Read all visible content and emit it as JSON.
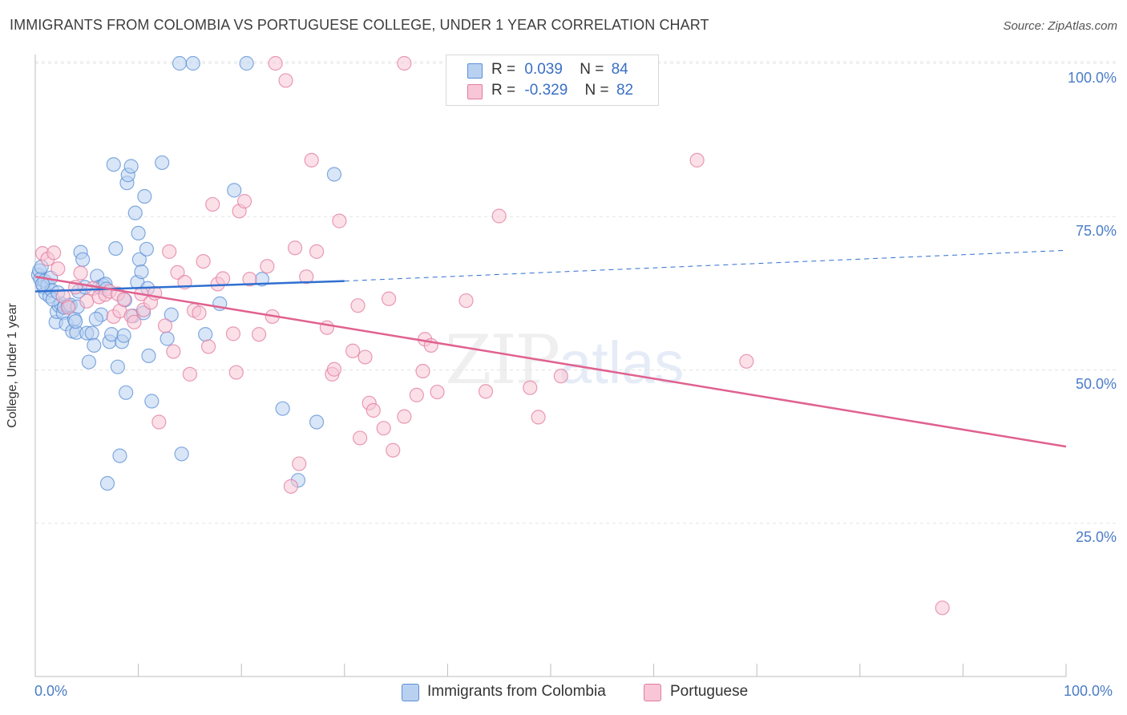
{
  "header": {
    "title": "IMMIGRANTS FROM COLOMBIA VS PORTUGUESE COLLEGE, UNDER 1 YEAR CORRELATION CHART",
    "source": "Source: ZipAtlas.com"
  },
  "watermark": {
    "zip": "ZIP",
    "atlas": "atlas"
  },
  "legend": {
    "rows": [
      {
        "r_label": "R =",
        "r_value": "0.039",
        "n_label": "N =",
        "n_value": "84",
        "color": "#5b8fd6",
        "fill": "#b9d1f1"
      },
      {
        "r_label": "R =",
        "r_value": "-0.329",
        "n_label": "N =",
        "n_value": "82",
        "color": "#e27ba0",
        "fill": "#f8c6d6"
      }
    ]
  },
  "bottom_legend": [
    {
      "label": "Immigrants from Colombia",
      "fill": "#b9d1f1",
      "stroke": "#5b8fd6"
    },
    {
      "label": "Portuguese",
      "fill": "#f8c6d6",
      "stroke": "#e27ba0"
    }
  ],
  "chart_data": {
    "type": "scatter",
    "title": "IMMIGRANTS FROM COLOMBIA VS PORTUGUESE COLLEGE, UNDER 1 YEAR CORRELATION CHART",
    "xlabel": "",
    "ylabel": "College, Under 1 year",
    "xlim": [
      0,
      100
    ],
    "ylim": [
      0,
      104
    ],
    "x_tick_labels": [
      "0.0%",
      "100.0%"
    ],
    "y_ticks": [
      25,
      50,
      75,
      100
    ],
    "y_tick_labels": [
      "25.0%",
      "50.0%",
      "75.0%",
      "100.0%"
    ],
    "grid": true,
    "legend_position": "top-center",
    "series": [
      {
        "name": "Immigrants from Colombia",
        "color": "#5b8fd6",
        "fill": "#b9d1f1",
        "trend": {
          "x0": 0,
          "y0": 62.8,
          "x1": 30,
          "y1": 64.5,
          "dashed_to_x": 100,
          "dashed_to_y": 69.5
        },
        "points": [
          [
            0.3,
            65.5
          ],
          [
            0.4,
            66.2
          ],
          [
            0.5,
            64.8
          ],
          [
            0.6,
            66.8
          ],
          [
            0.8,
            63.5
          ],
          [
            0.9,
            64.5
          ],
          [
            1.0,
            62.5
          ],
          [
            1.2,
            63.8
          ],
          [
            1.4,
            62.0
          ],
          [
            1.5,
            65.0
          ],
          [
            1.6,
            63.0
          ],
          [
            2.0,
            57.8
          ],
          [
            2.1,
            59.5
          ],
          [
            2.3,
            60.5
          ],
          [
            2.5,
            60.8
          ],
          [
            2.7,
            59.3
          ],
          [
            2.8,
            60.2
          ],
          [
            3.0,
            57.5
          ],
          [
            3.2,
            60.5
          ],
          [
            3.4,
            60.6
          ],
          [
            3.6,
            56.3
          ],
          [
            3.8,
            58.3
          ],
          [
            4.0,
            56.1
          ],
          [
            4.2,
            62.8
          ],
          [
            4.4,
            69.2
          ],
          [
            4.6,
            68.0
          ],
          [
            4.8,
            63.5
          ],
          [
            5.0,
            56.0
          ],
          [
            5.2,
            51.3
          ],
          [
            5.5,
            56.0
          ],
          [
            5.7,
            54.0
          ],
          [
            6.0,
            65.3
          ],
          [
            6.2,
            63.5
          ],
          [
            6.4,
            59.0
          ],
          [
            6.6,
            63.8
          ],
          [
            6.8,
            64.0
          ],
          [
            7.0,
            31.5
          ],
          [
            7.2,
            54.6
          ],
          [
            7.4,
            55.8
          ],
          [
            7.6,
            83.5
          ],
          [
            7.8,
            69.8
          ],
          [
            8.0,
            50.5
          ],
          [
            8.2,
            36.0
          ],
          [
            8.4,
            54.6
          ],
          [
            8.6,
            55.6
          ],
          [
            8.7,
            61.4
          ],
          [
            8.8,
            46.3
          ],
          [
            8.9,
            80.5
          ],
          [
            9.0,
            81.8
          ],
          [
            9.3,
            83.2
          ],
          [
            9.5,
            58.8
          ],
          [
            9.7,
            75.6
          ],
          [
            9.9,
            64.3
          ],
          [
            10.0,
            72.3
          ],
          [
            10.1,
            68.0
          ],
          [
            10.3,
            66.0
          ],
          [
            10.5,
            59.3
          ],
          [
            10.6,
            78.3
          ],
          [
            10.8,
            69.7
          ],
          [
            10.9,
            63.3
          ],
          [
            11.0,
            52.3
          ],
          [
            11.3,
            44.9
          ],
          [
            12.3,
            83.8
          ],
          [
            12.8,
            55.1
          ],
          [
            13.2,
            59.0
          ],
          [
            14.0,
            100.0
          ],
          [
            14.2,
            36.3
          ],
          [
            15.3,
            100.0
          ],
          [
            16.5,
            55.8
          ],
          [
            17.9,
            60.8
          ],
          [
            19.3,
            79.3
          ],
          [
            20.5,
            100.0
          ],
          [
            22.0,
            64.8
          ],
          [
            24.0,
            43.7
          ],
          [
            25.5,
            32.0
          ],
          [
            27.3,
            41.5
          ],
          [
            29.0,
            81.9
          ],
          [
            3.9,
            57.9
          ],
          [
            6.9,
            63.2
          ],
          [
            1.7,
            61.5
          ],
          [
            2.2,
            62.6
          ],
          [
            0.7,
            64.0
          ],
          [
            5.9,
            58.3
          ],
          [
            4.1,
            60.3
          ]
        ]
      },
      {
        "name": "Portuguese",
        "color": "#e27ba0",
        "fill": "#f8c6d6",
        "trend": {
          "x0": 0,
          "y0": 65.2,
          "x1": 100,
          "y1": 37.5
        },
        "points": [
          [
            0.7,
            69.0
          ],
          [
            1.2,
            68.1
          ],
          [
            1.8,
            69.1
          ],
          [
            2.2,
            66.5
          ],
          [
            2.7,
            62.0
          ],
          [
            3.2,
            60.2
          ],
          [
            3.9,
            63.5
          ],
          [
            4.4,
            65.8
          ],
          [
            5.0,
            61.2
          ],
          [
            5.6,
            63.3
          ],
          [
            6.2,
            61.9
          ],
          [
            6.8,
            62.3
          ],
          [
            7.2,
            62.8
          ],
          [
            7.6,
            58.7
          ],
          [
            8.0,
            62.4
          ],
          [
            8.2,
            59.6
          ],
          [
            8.6,
            61.5
          ],
          [
            9.3,
            58.8
          ],
          [
            9.6,
            57.8
          ],
          [
            10.3,
            62.4
          ],
          [
            10.5,
            59.8
          ],
          [
            11.2,
            61.0
          ],
          [
            11.6,
            62.5
          ],
          [
            12.0,
            41.5
          ],
          [
            12.6,
            57.2
          ],
          [
            13.0,
            69.3
          ],
          [
            13.4,
            53.0
          ],
          [
            13.8,
            65.9
          ],
          [
            14.5,
            64.3
          ],
          [
            15.0,
            49.3
          ],
          [
            15.4,
            59.7
          ],
          [
            15.9,
            59.3
          ],
          [
            16.3,
            67.7
          ],
          [
            16.8,
            53.8
          ],
          [
            17.2,
            77.0
          ],
          [
            17.7,
            64.0
          ],
          [
            18.2,
            64.9
          ],
          [
            19.2,
            55.9
          ],
          [
            19.5,
            49.6
          ],
          [
            19.8,
            75.9
          ],
          [
            20.3,
            77.5
          ],
          [
            20.8,
            64.8
          ],
          [
            21.7,
            55.8
          ],
          [
            22.5,
            66.9
          ],
          [
            23.0,
            58.7
          ],
          [
            23.3,
            100.0
          ],
          [
            24.3,
            97.2
          ],
          [
            24.8,
            31.0
          ],
          [
            25.2,
            69.9
          ],
          [
            25.6,
            34.7
          ],
          [
            26.3,
            65.2
          ],
          [
            26.8,
            84.2
          ],
          [
            27.3,
            69.3
          ],
          [
            28.3,
            56.9
          ],
          [
            28.8,
            49.3
          ],
          [
            29.0,
            50.1
          ],
          [
            29.5,
            74.3
          ],
          [
            30.8,
            53.1
          ],
          [
            31.3,
            60.5
          ],
          [
            31.5,
            38.9
          ],
          [
            32.0,
            52.1
          ],
          [
            32.4,
            44.6
          ],
          [
            32.8,
            43.4
          ],
          [
            33.8,
            40.5
          ],
          [
            34.3,
            61.6
          ],
          [
            34.7,
            36.9
          ],
          [
            35.8,
            42.4
          ],
          [
            37.0,
            45.9
          ],
          [
            37.6,
            49.8
          ],
          [
            37.8,
            55.0
          ],
          [
            38.4,
            54.0
          ],
          [
            39.0,
            46.4
          ],
          [
            41.8,
            61.3
          ],
          [
            43.7,
            46.5
          ],
          [
            45.0,
            75.1
          ],
          [
            48.0,
            47.1
          ],
          [
            48.8,
            42.3
          ],
          [
            51.0,
            49.0
          ],
          [
            64.2,
            84.2
          ],
          [
            69.0,
            51.4
          ],
          [
            88.0,
            11.2
          ],
          [
            35.8,
            100.0
          ]
        ]
      }
    ]
  }
}
